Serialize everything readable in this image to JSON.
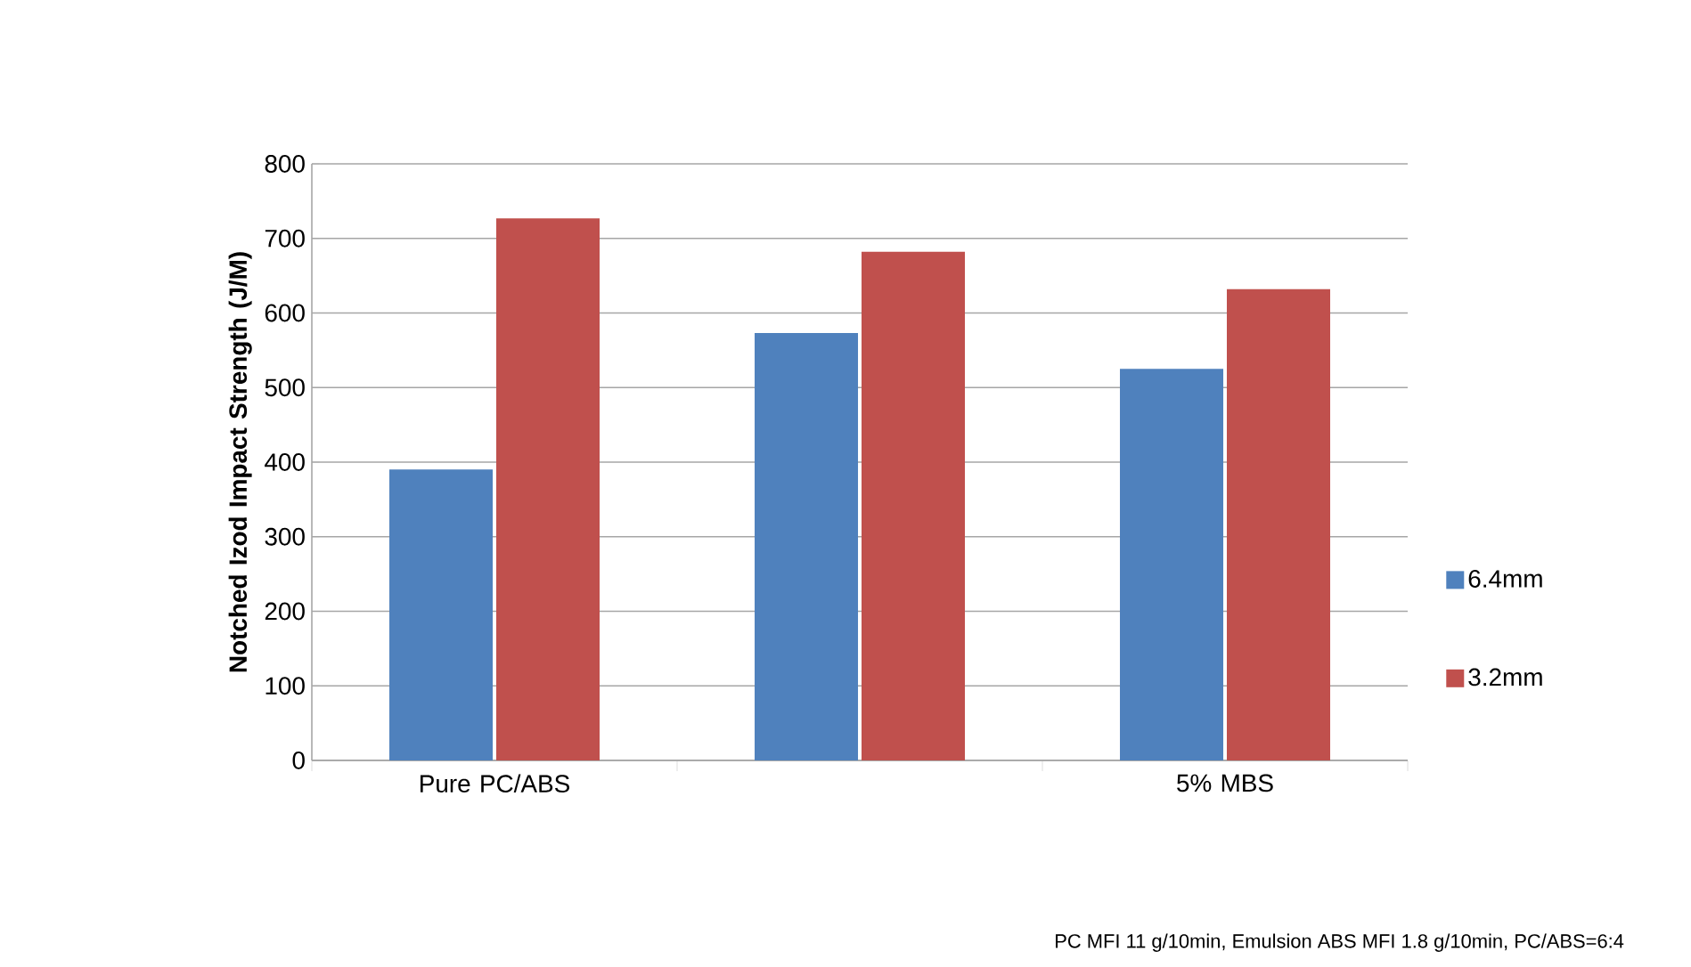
{
  "chart_data": {
    "type": "bar",
    "ylabel": "Notched Izod Impact Strength (J/M)",
    "categories": [
      "Pure PC/ABS",
      null,
      "5% MBS"
    ],
    "series": [
      {
        "name": "6.4mm",
        "color": "#4f81bd",
        "values": [
          390,
          573,
          525
        ]
      },
      {
        "name": "3.2mm",
        "color": "#c0504d",
        "values": [
          727,
          682,
          632
        ]
      }
    ],
    "ylim": [
      0,
      800
    ],
    "yticks": [
      0,
      100,
      200,
      300,
      400,
      500,
      600,
      700,
      800
    ],
    "grid": "y",
    "legend": "right",
    "annotations": [
      "PC MFI 11 g/10min, Emulsion ABS MFI 1.8 g/10min, PC/ABS=6:4"
    ]
  }
}
